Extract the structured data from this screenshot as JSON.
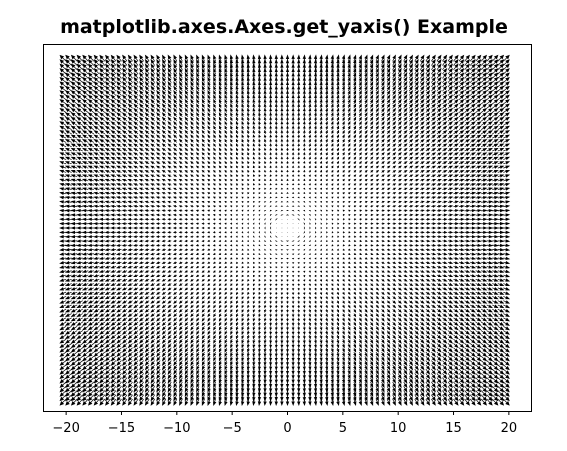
{
  "chart_data": {
    "type": "quiver",
    "title": "matplotlib.axes.Axes.get_yaxis() Example",
    "xlabel": "",
    "ylabel": "",
    "grid": false,
    "xlim": [
      -22,
      22
    ],
    "ylim": [
      -21.4,
      21.4
    ],
    "x_tick_values": [
      -20,
      -15,
      -10,
      -5,
      0,
      5,
      10,
      15,
      20
    ],
    "x_tick_labels": [
      "−20",
      "−15",
      "−10",
      "−5",
      "0",
      "5",
      "10",
      "15",
      "20"
    ],
    "y_ticks_shown": false,
    "grid_x": {
      "start": -20,
      "stop": 19.5,
      "step": 0.5
    },
    "grid_y": {
      "start": -20,
      "stop": 19.5,
      "step": 0.5
    },
    "u_formula": "x",
    "v_formula": "y",
    "arrow_color": "#000000"
  }
}
